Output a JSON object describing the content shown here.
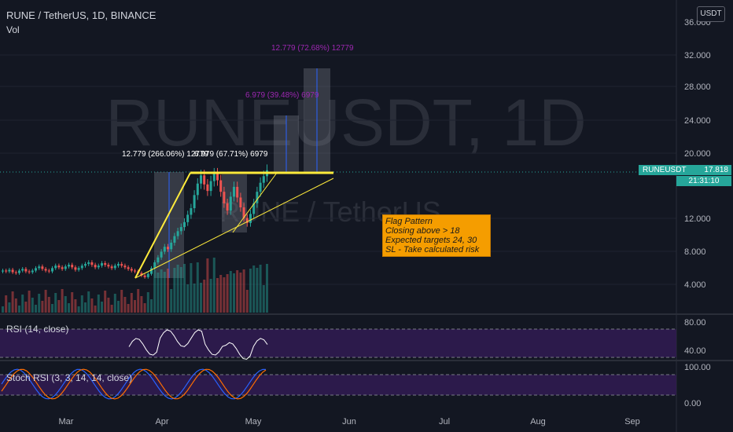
{
  "header": {
    "symbol_line": "RUNE / TetherUS, 1D, BINANCE",
    "volume_label": "Vol"
  },
  "currency_button": "USDT",
  "watermark": {
    "big": "RUNEUSDT, 1D",
    "sub": "RUNE / TetherUS"
  },
  "price_axis": {
    "ticks": [
      "36.000",
      "32.000",
      "28.000",
      "24.000",
      "20.000",
      "12.000",
      "8.000",
      "4.000"
    ]
  },
  "rsi_axis": {
    "ticks": [
      "80.00",
      "40.00"
    ]
  },
  "stoch_axis": {
    "ticks": [
      "100.00",
      "0.00"
    ]
  },
  "time_axis": {
    "ticks": [
      "Mar",
      "Apr",
      "May",
      "Jun",
      "Jul",
      "Aug",
      "Sep"
    ]
  },
  "last_price": {
    "symbol": "RUNEUSDT",
    "price": "17.818",
    "countdown": "21:31:10"
  },
  "rsi_label": "RSI (14, close)",
  "stoch_label": "Stoch RSI (3, 3, 14, 14, close)",
  "measure_labels": {
    "top": "12.779 (72.68%) 12779",
    "mid": "6.979 (39.48%) 6979",
    "left": "12.779 (266.06%) 12779",
    "right": "6.979 (67.71%) 6979"
  },
  "note": {
    "lines": [
      "Flag Pattern",
      "Closing above > 18",
      "Expected targets 24, 30",
      "SL - Take calculated risk"
    ]
  },
  "colors": {
    "bg": "#131722",
    "up": "#26a69a",
    "down": "#ef5350",
    "accent": "#ffeb3b",
    "rsi": "#ffffff",
    "stochK": "#2962ff",
    "stochD": "#ff6d00",
    "band": "#311b52",
    "measure": "#9c27b0"
  },
  "chart_data": {
    "type": "candlestick",
    "x_ticks": [
      "Mar",
      "Apr",
      "May",
      "Jun",
      "Jul",
      "Aug",
      "Sep"
    ],
    "y_ticks": [
      4,
      8,
      12,
      20,
      24,
      28,
      32,
      36
    ],
    "last_price": 17.818,
    "resistance_level": 18,
    "targets": [
      24,
      30
    ],
    "close_series": [
      5.6,
      5.5,
      5.7,
      5.4,
      5.3,
      5.6,
      5.8,
      5.5,
      5.4,
      5.6,
      5.9,
      6.1,
      5.8,
      5.6,
      5.5,
      5.9,
      6.2,
      6.0,
      5.8,
      6.1,
      6.3,
      6.0,
      5.7,
      5.9,
      6.2,
      6.4,
      6.6,
      6.3,
      6.0,
      6.2,
      6.5,
      6.3,
      6.1,
      5.9,
      6.2,
      6.4,
      6.2,
      6.0,
      5.8,
      5.6,
      5.5,
      5.3,
      5.0,
      4.8,
      5.2,
      5.9,
      6.6,
      7.2,
      7.9,
      8.5,
      8.2,
      9.0,
      9.8,
      10.4,
      10.9,
      11.5,
      12.4,
      13.2,
      14.8,
      16.2,
      17.2,
      16.1,
      15.3,
      16.5,
      17.4,
      16.6,
      15.2,
      13.8,
      12.9,
      14.6,
      15.8,
      14.5,
      13.3,
      12.0,
      11.4,
      12.5,
      13.8,
      15.2,
      16.3,
      17.1,
      17.818
    ]
  }
}
